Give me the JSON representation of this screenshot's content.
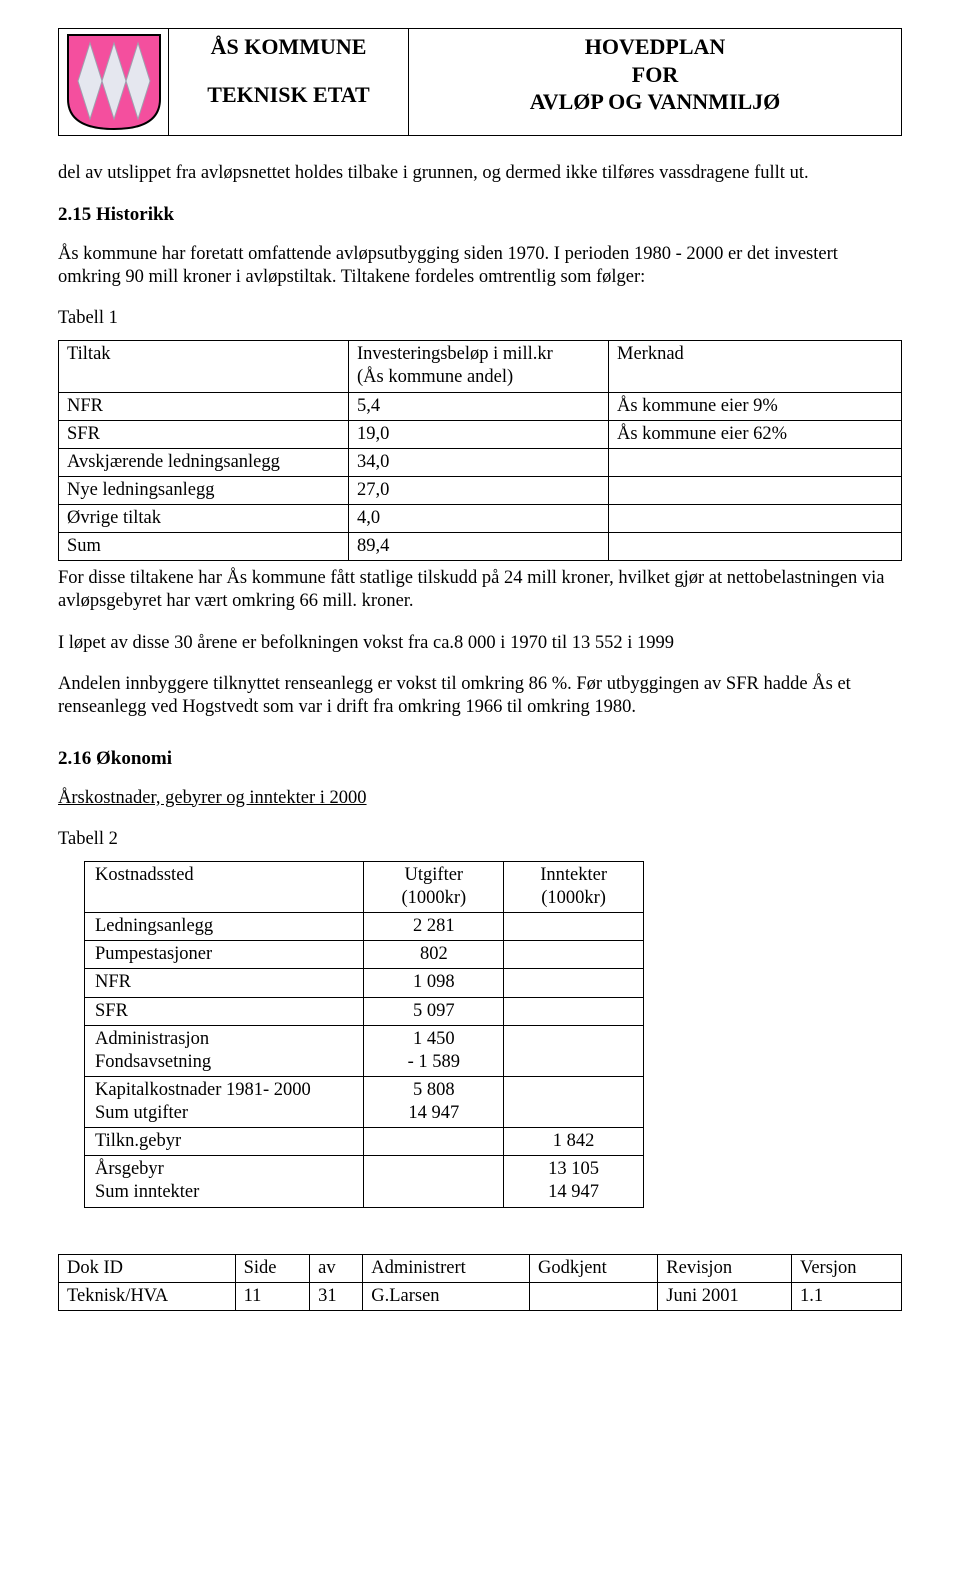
{
  "header": {
    "org1": "ÅS KOMMUNE",
    "org2": "TEKNISK ETAT",
    "title1": "HOVEDPLAN",
    "title2": "FOR",
    "title3": "AVLØP OG VANNMILJØ",
    "logo": {
      "bg": "#f44f9e",
      "diamond": "#e5e7ef"
    }
  },
  "body": {
    "p1": "del av utslippet fra avløpsnettet holdes tilbake i grunnen, og dermed ikke tilføres vassdragene fullt ut.",
    "s215": "2.15  Historikk",
    "p2": "Ås kommune har foretatt omfattende avløpsutbygging siden 1970. I perioden 1980 - 2000 er det investert omkring 90 mill kroner i avløpstiltak. Tiltakene fordeles omtrentlig som følger:",
    "tbl1_label": "Tabell 1",
    "t1": {
      "h1": "Tiltak",
      "h2a": "Investeringsbeløp i mill.kr",
      "h2b": "(Ås kommune andel)",
      "h3": "Merknad",
      "rows": [
        {
          "a": "NFR",
          "b": "5,4",
          "c": "Ås kommune eier 9%"
        },
        {
          "a": "SFR",
          "b": "19,0",
          "c": "Ås kommune eier 62%"
        },
        {
          "a": "Avskjærende ledningsanlegg",
          "b": "34,0",
          "c": ""
        },
        {
          "a": "Nye ledningsanlegg",
          "b": "27,0",
          "c": ""
        },
        {
          "a": "Øvrige tiltak",
          "b": "4,0",
          "c": ""
        },
        {
          "a": "Sum",
          "b": "89,4",
          "c": ""
        }
      ]
    },
    "p3": "For disse tiltakene har Ås kommune fått statlige tilskudd på 24 mill kroner, hvilket gjør at nettobelastningen via avløpsgebyret har vært omkring 66 mill. kroner.",
    "p4": "I løpet av disse 30 årene er befolkningen vokst fra ca.8 000 i 1970 til 13 552 i 1999",
    "p5": "Andelen innbyggere tilknyttet renseanlegg er vokst til omkring 86 %. Før utbyggingen av SFR hadde Ås et renseanlegg ved Hogstvedt som var i drift fra omkring 1966 til omkring 1980.",
    "s216": "2.16  Økonomi",
    "p6": "Årskostnader, gebyrer og inntekter i 2000",
    "tbl2_label": "Tabell 2",
    "t2": {
      "h1": "Kostnadssted",
      "h2a": "Utgifter",
      "h2b": "(1000kr)",
      "h3a": "Inntekter",
      "h3b": "(1000kr)",
      "rows": [
        {
          "a": "Ledningsanlegg",
          "b": "2 281",
          "c": ""
        },
        {
          "a": "Pumpestasjoner",
          "b": "802",
          "c": ""
        },
        {
          "a": "NFR",
          "b": "1 098",
          "c": ""
        },
        {
          "a": "SFR",
          "b": "5 097",
          "c": ""
        },
        {
          "a": "Administrasjon",
          "b": "1 450",
          "c": ""
        },
        {
          "a": "Fondsavsetning",
          "b": "-  1 589",
          "c": ""
        },
        {
          "a": "Kapitalkostnader 1981- 2000",
          "b": "5 808",
          "c": ""
        },
        {
          "a": "Sum utgifter",
          "b": "14 947",
          "c": ""
        },
        {
          "a": "Tilkn.gebyr",
          "b": "",
          "c": "1 842"
        },
        {
          "a": "Årsgebyr",
          "b": "",
          "c": "13 105"
        },
        {
          "a": "Sum inntekter",
          "b": "",
          "c": "14 947"
        }
      ]
    }
  },
  "footer": {
    "h": [
      "Dok ID",
      "Side",
      "av",
      "Administrert",
      "Godkjent",
      "Revisjon",
      "Versjon"
    ],
    "r": [
      "Teknisk/HVA",
      "11",
      "31",
      "G.Larsen",
      "",
      "Juni 2001",
      "1.1"
    ]
  }
}
